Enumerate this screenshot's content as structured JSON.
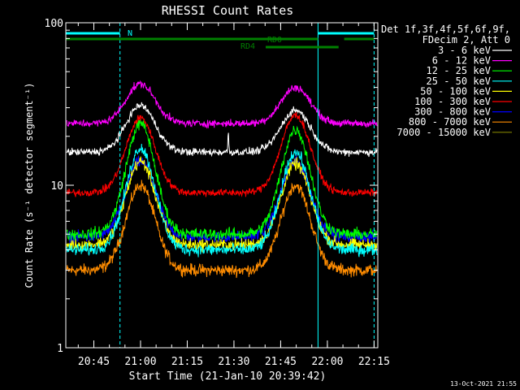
{
  "chart_data": {
    "type": "line",
    "title": "RHESSI Count Rates",
    "xlabel": "Start Time (21-Jan-10 20:39:42)",
    "ylabel": "Count Rate (s⁻¹ detector segment⁻¹)",
    "yscale": "log",
    "xlim_minutes": [
      20.6,
      22.27
    ],
    "ylim": [
      1,
      100
    ],
    "x_tick_labels": [
      {
        "label": "20:45",
        "t": 20.75
      },
      {
        "label": "21:00",
        "t": 21.0
      },
      {
        "label": "21:15",
        "t": 21.25
      },
      {
        "label": "21:30",
        "t": 21.5
      },
      {
        "label": "21:45",
        "t": 21.75
      },
      {
        "label": "22:00",
        "t": 22.0
      },
      {
        "label": "22:15",
        "t": 22.25
      }
    ],
    "y_tick_labels": [
      {
        "label": "1",
        "v": 1
      },
      {
        "label": "10",
        "v": 10
      },
      {
        "label": "100",
        "v": 100
      }
    ],
    "legend_header": [
      "Det 1f,3f,4f,5f,6f,9f,",
      "FDecim 2, Att 0"
    ],
    "series": [
      {
        "name": "3 - 6 keV",
        "color": "#ffffff",
        "trough": 16,
        "peak1": 31,
        "peak2": 29
      },
      {
        "name": "6 - 12 keV",
        "color": "#ff00ff",
        "trough": 24,
        "peak1": 42,
        "peak2": 40
      },
      {
        "name": "12 - 25 keV",
        "color": "#00ff00",
        "trough": 5,
        "peak1": 24,
        "peak2": 22
      },
      {
        "name": "25 - 50 keV",
        "color": "#00ffff",
        "trough": 4.0,
        "peak1": 17,
        "peak2": 16
      },
      {
        "name": "50 - 100 keV",
        "color": "#ffff00",
        "trough": 4.3,
        "peak1": 14,
        "peak2": 13.5
      },
      {
        "name": "100 - 300 keV",
        "color": "#ff0000",
        "trough": 9,
        "peak1": 26,
        "peak2": 27
      },
      {
        "name": "300 - 800 keV",
        "color": "#0000ff",
        "trough": 4.8,
        "peak1": 14,
        "peak2": 14
      },
      {
        "name": "800 - 7000 keV",
        "color": "#ff8c00",
        "trough": 3.0,
        "peak1": 10,
        "peak2": 10
      },
      {
        "name": "7000 - 15000 keV",
        "color": "#808000",
        "trough": null,
        "peak1": null,
        "peak2": null
      }
    ],
    "annotations": [
      {
        "label": "N",
        "color": "#00ffff"
      },
      {
        "label": "RD0",
        "color": "#008000"
      },
      {
        "label": "RD4",
        "color": "#008000"
      }
    ],
    "bars": {
      "night": [
        [
          20.6,
          20.89
        ],
        [
          21.95,
          22.25
        ]
      ],
      "rd0": [
        [
          20.6,
          21.95
        ],
        [
          22.09,
          22.25
        ]
      ],
      "rd4": [
        [
          21.67,
          22.06
        ]
      ]
    },
    "vlines": {
      "solid": [
        20.6,
        21.95
      ],
      "dashed": [
        20.89,
        22.25
      ]
    },
    "footer": "13-Oct-2021 21:55"
  },
  "colors": {
    "background": "#000000",
    "axes": "#ffffff",
    "night": "#00ffff",
    "rd": "#008000"
  }
}
